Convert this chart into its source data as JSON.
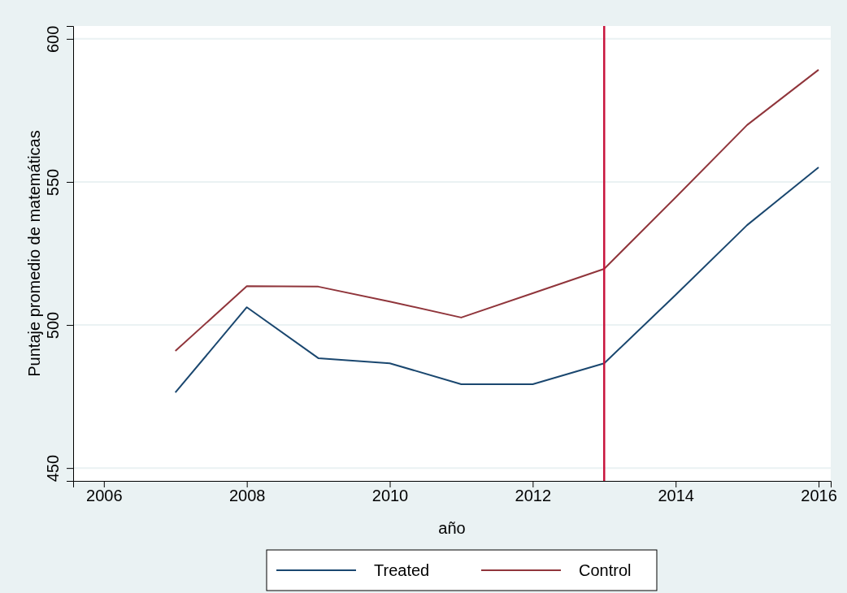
{
  "chart_data": {
    "type": "line",
    "xlabel": "año",
    "ylabel": "Puntaje promedio de matemáticas",
    "x": [
      2007,
      2008,
      2009,
      2010,
      2011,
      2012,
      2013,
      2014,
      2015,
      2016
    ],
    "series": [
      {
        "name": "Treated",
        "color": "#1a476f",
        "values": [
          476.4,
          506.2,
          488.4,
          486.6,
          479.3,
          479.3,
          486.6,
          510.5,
          534.9,
          555.1
        ]
      },
      {
        "name": "Control",
        "color": "#90353b",
        "values": [
          490.9,
          513.6,
          513.4,
          508.2,
          502.6,
          511.1,
          519.6,
          544.6,
          569.9,
          589.2
        ]
      }
    ],
    "xlim": [
      2005.57,
      2016.17
    ],
    "xticks": [
      2006,
      2008,
      2010,
      2012,
      2014,
      2016
    ],
    "ylim": [
      445.5,
      604.5
    ],
    "yticks": [
      450,
      500,
      550,
      600
    ],
    "grid": "y",
    "legend": "bottom",
    "marker": "none",
    "line_style": "solid",
    "ref_lines": [
      {
        "axis": "x",
        "value": 2013,
        "color": "#c8143c"
      }
    ]
  }
}
